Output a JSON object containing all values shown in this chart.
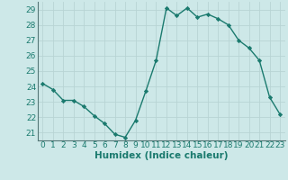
{
  "x": [
    0,
    1,
    2,
    3,
    4,
    5,
    6,
    7,
    8,
    9,
    10,
    11,
    12,
    13,
    14,
    15,
    16,
    17,
    18,
    19,
    20,
    21,
    22,
    23
  ],
  "y": [
    24.2,
    23.8,
    23.1,
    23.1,
    22.7,
    22.1,
    21.6,
    20.9,
    20.7,
    21.8,
    23.7,
    25.7,
    29.1,
    28.6,
    29.1,
    28.5,
    28.7,
    28.4,
    28.0,
    27.0,
    26.5,
    25.7,
    23.3,
    22.2
  ],
  "line_color": "#1a7a6e",
  "bg_color": "#cde8e8",
  "grid_color": "#b8d4d4",
  "xlabel": "Humidex (Indice chaleur)",
  "ylim": [
    20.5,
    29.5
  ],
  "yticks": [
    21,
    22,
    23,
    24,
    25,
    26,
    27,
    28,
    29
  ],
  "xlim": [
    -0.5,
    23.5
  ],
  "xticks": [
    0,
    1,
    2,
    3,
    4,
    5,
    6,
    7,
    8,
    9,
    10,
    11,
    12,
    13,
    14,
    15,
    16,
    17,
    18,
    19,
    20,
    21,
    22,
    23
  ],
  "marker": "D",
  "marker_size": 2.2,
  "line_width": 1.0,
  "xlabel_fontsize": 7.5,
  "tick_fontsize": 6.5,
  "spine_color": "#557777"
}
